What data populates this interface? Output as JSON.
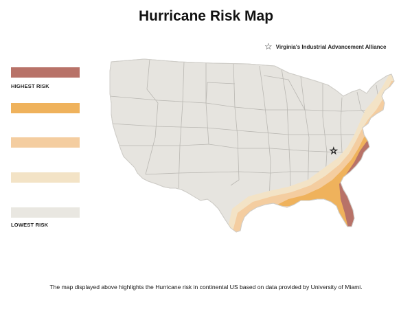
{
  "title": "Hurricane Risk Map",
  "legend": {
    "items": [
      {
        "color": "#b87268",
        "label": "HIGHEST RISK"
      },
      {
        "color": "#efb25c",
        "label": ""
      },
      {
        "color": "#f4cda0",
        "label": ""
      },
      {
        "color": "#f3e3c6",
        "label": ""
      },
      {
        "color": "#e9e7e1",
        "label": "LOWEST RISK"
      }
    ]
  },
  "annotation": {
    "marker_icon": "star-outline-icon",
    "label": "Virginia's Industrial Advancement Alliance"
  },
  "caption": "The map displayed above highlights the Hurricane risk in continental US based on data provided by University of Miami."
}
